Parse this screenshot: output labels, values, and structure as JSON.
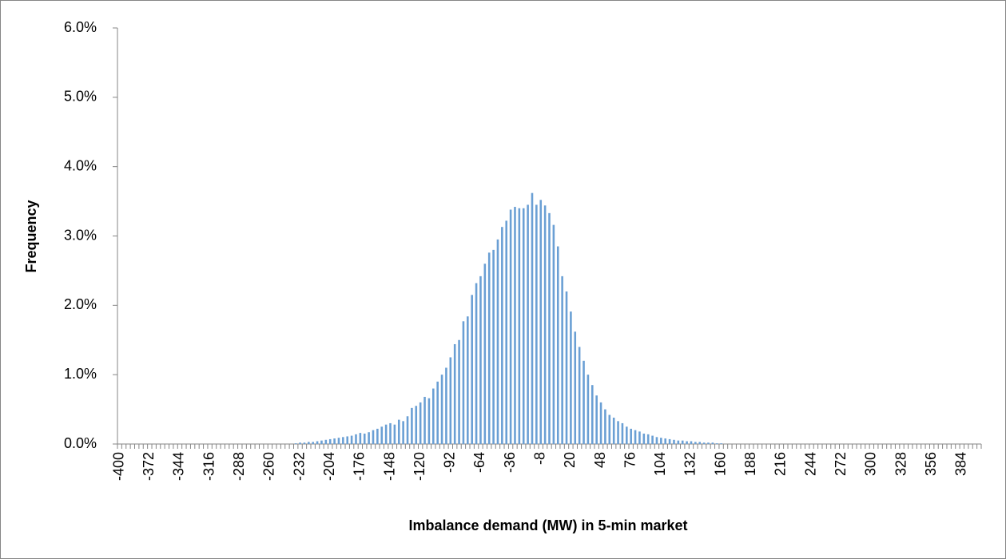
{
  "chart_data": {
    "type": "bar",
    "x_label": "Imbalance demand (MW) in 5-min market",
    "y_label": "Frequency",
    "categories": [
      "-400",
      null,
      null,
      null,
      null,
      null,
      null,
      "-372",
      null,
      null,
      null,
      null,
      null,
      null,
      "-344",
      null,
      null,
      null,
      null,
      null,
      null,
      "-316",
      null,
      null,
      null,
      null,
      null,
      null,
      "-288",
      null,
      null,
      null,
      null,
      null,
      null,
      "-260",
      null,
      null,
      null,
      null,
      null,
      null,
      "-232",
      null,
      null,
      null,
      null,
      null,
      null,
      "-204",
      null,
      null,
      null,
      null,
      null,
      null,
      "-176",
      null,
      null,
      null,
      null,
      null,
      null,
      "-148",
      null,
      null,
      null,
      null,
      null,
      null,
      "-120",
      null,
      null,
      null,
      null,
      null,
      null,
      "-92",
      null,
      null,
      null,
      null,
      null,
      null,
      "-64",
      null,
      null,
      null,
      null,
      null,
      null,
      "-36",
      null,
      null,
      null,
      null,
      null,
      null,
      "-8",
      null,
      null,
      null,
      null,
      null,
      null,
      "20",
      null,
      null,
      null,
      null,
      null,
      null,
      "48",
      null,
      null,
      null,
      null,
      null,
      null,
      "76",
      null,
      null,
      null,
      null,
      null,
      null,
      "104",
      null,
      null,
      null,
      null,
      null,
      null,
      "132",
      null,
      null,
      null,
      null,
      null,
      null,
      "160",
      null,
      null,
      null,
      null,
      null,
      null,
      "188",
      null,
      null,
      null,
      null,
      null,
      null,
      "216",
      null,
      null,
      null,
      null,
      null,
      null,
      "244",
      null,
      null,
      null,
      null,
      null,
      null,
      "272",
      null,
      null,
      null,
      null,
      null,
      null,
      "300",
      null,
      null,
      null,
      null,
      null,
      null,
      "328",
      null,
      null,
      null,
      null,
      null,
      null,
      "356",
      null,
      null,
      null,
      null,
      null,
      null,
      "384",
      null,
      null,
      null,
      null
    ],
    "values": [
      0,
      0,
      0,
      0,
      0,
      0,
      0,
      0,
      0,
      0,
      0,
      0,
      0,
      0,
      0,
      0,
      0,
      0,
      0,
      0,
      0,
      0,
      0,
      0,
      0,
      0,
      0,
      0,
      0,
      0,
      0,
      0,
      0,
      0,
      0,
      0,
      0,
      0,
      0,
      0,
      0,
      0.01,
      0.02,
      0.02,
      0.03,
      0.03,
      0.04,
      0.05,
      0.06,
      0.07,
      0.08,
      0.09,
      0.1,
      0.11,
      0.12,
      0.14,
      0.16,
      0.15,
      0.17,
      0.2,
      0.22,
      0.25,
      0.28,
      0.3,
      0.28,
      0.35,
      0.33,
      0.4,
      0.52,
      0.55,
      0.6,
      0.68,
      0.66,
      0.8,
      0.9,
      1.0,
      1.1,
      1.25,
      1.44,
      1.5,
      1.77,
      1.84,
      2.15,
      2.32,
      2.42,
      2.6,
      2.76,
      2.8,
      2.95,
      3.13,
      3.22,
      3.38,
      3.42,
      3.4,
      3.4,
      3.45,
      3.62,
      3.45,
      3.52,
      3.44,
      3.33,
      3.16,
      2.85,
      2.42,
      2.2,
      1.91,
      1.62,
      1.4,
      1.2,
      1.0,
      0.85,
      0.7,
      0.6,
      0.5,
      0.42,
      0.38,
      0.33,
      0.3,
      0.25,
      0.22,
      0.2,
      0.18,
      0.15,
      0.14,
      0.12,
      0.1,
      0.09,
      0.08,
      0.07,
      0.06,
      0.05,
      0.05,
      0.04,
      0.04,
      0.03,
      0.03,
      0.02,
      0.02,
      0.02,
      0.01,
      0.01,
      0,
      0,
      0,
      0,
      0,
      0,
      0,
      0,
      0,
      0,
      0,
      0,
      0,
      0,
      0,
      0,
      0,
      0,
      0,
      0,
      0,
      0,
      0,
      0,
      0,
      0,
      0,
      0,
      0,
      0,
      0,
      0,
      0,
      0,
      0,
      0,
      0,
      0,
      0,
      0,
      0,
      0,
      0,
      0,
      0,
      0,
      0,
      0,
      0,
      0,
      0,
      0,
      0,
      0,
      0,
      0,
      0,
      0,
      0,
      0
    ],
    "color": "#6a9fd4",
    "ylim": [
      0,
      6
    ],
    "yticks": [
      {
        "value": 0,
        "label": "0.0%"
      },
      {
        "value": 1,
        "label": "1.0%"
      },
      {
        "value": 2,
        "label": "2.0%"
      },
      {
        "value": 3,
        "label": "3.0%"
      },
      {
        "value": 4,
        "label": "4.0%"
      },
      {
        "value": 5,
        "label": "5.0%"
      },
      {
        "value": 6,
        "label": "6.0%"
      }
    ],
    "grid": false
  }
}
